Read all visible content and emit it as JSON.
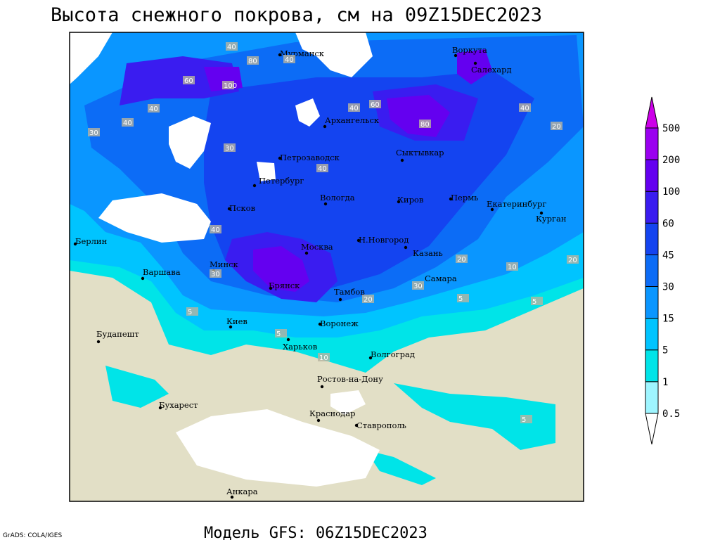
{
  "title": "Высота снежного покрова, см на 09Z15DEC2023",
  "footer": "Модель GFS: 06Z15DEC2023",
  "credit": "GrADS: COLA/IGES",
  "legend": {
    "levels": [
      0.5,
      1,
      5,
      15,
      30,
      45,
      60,
      100,
      200,
      500
    ],
    "colors": [
      "#ffffff",
      "#9ff5ff",
      "#00e4e8",
      "#00c4ff",
      "#0a96ff",
      "#0c6cf6",
      "#1444f0",
      "#3a1cf0",
      "#6400f0",
      "#9a00f0",
      "#cc00e8"
    ]
  },
  "cities": [
    {
      "name": "Мурманск"
    },
    {
      "name": "Воркута"
    },
    {
      "name": "Салехард"
    },
    {
      "name": "Архангельск"
    },
    {
      "name": "Сыктывкар"
    },
    {
      "name": "Петрозаводск"
    },
    {
      "name": "Петербург"
    },
    {
      "name": "Псков"
    },
    {
      "name": "Вологда"
    },
    {
      "name": "Киров"
    },
    {
      "name": "Пермь"
    },
    {
      "name": "Екатеринбург"
    },
    {
      "name": "Курган"
    },
    {
      "name": "Берлин"
    },
    {
      "name": "Н.Новгород"
    },
    {
      "name": "Казань"
    },
    {
      "name": "Москва"
    },
    {
      "name": "Минск"
    },
    {
      "name": "Варшава"
    },
    {
      "name": "Брянск"
    },
    {
      "name": "Тамбов"
    },
    {
      "name": "Самара"
    },
    {
      "name": "Киев"
    },
    {
      "name": "Воронеж"
    },
    {
      "name": "Будапешт"
    },
    {
      "name": "Харьков"
    },
    {
      "name": "Волгоград"
    },
    {
      "name": "Ростов-на-Дону"
    },
    {
      "name": "Бухарест"
    },
    {
      "name": "Краснодар"
    },
    {
      "name": "Ставрополь"
    },
    {
      "name": "Анкара"
    }
  ],
  "contour_labels": [
    40,
    80,
    60,
    100,
    40,
    40,
    30,
    40,
    60,
    40,
    80,
    40,
    30,
    20,
    40,
    40,
    30,
    20,
    10,
    20,
    30,
    5,
    5,
    5,
    10,
    20,
    5,
    5
  ]
}
